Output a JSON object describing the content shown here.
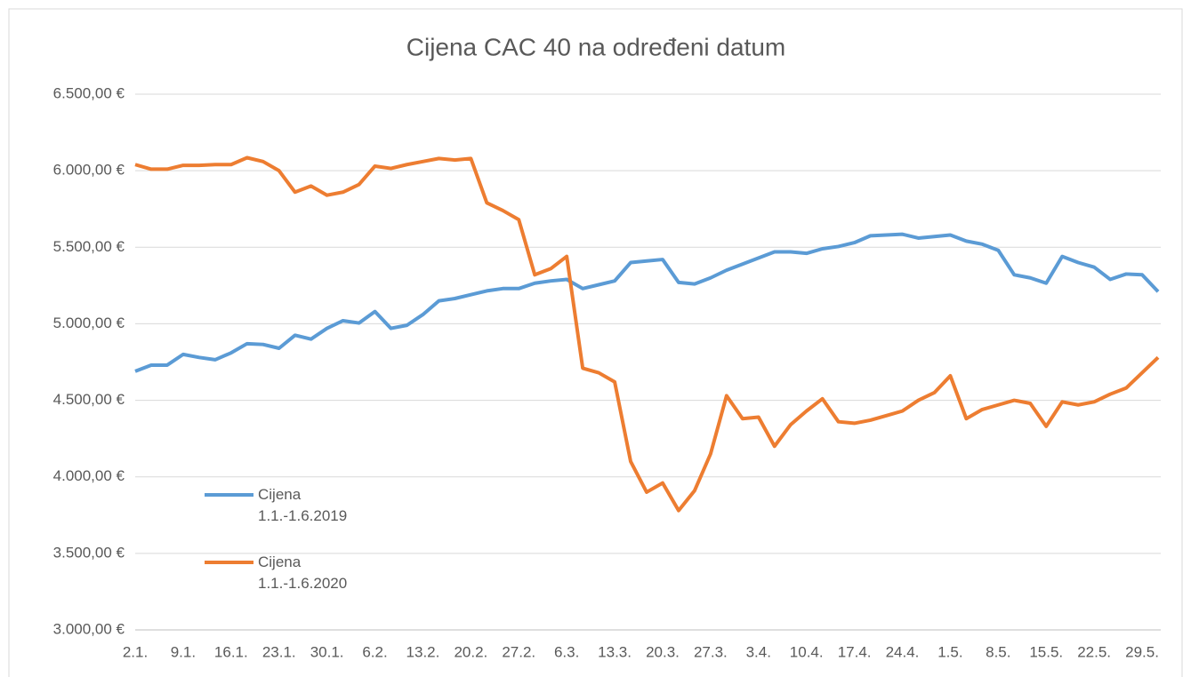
{
  "chart_data": {
    "type": "line",
    "title": "Cijena CAC 40 na određeni datum",
    "categories": [
      "2.1.",
      null,
      null,
      "9.1.",
      null,
      null,
      "16.1.",
      null,
      null,
      "23.1.",
      null,
      null,
      "30.1.",
      null,
      null,
      "6.2.",
      null,
      null,
      "13.2.",
      null,
      null,
      "20.2.",
      null,
      null,
      "27.2.",
      null,
      null,
      "6.3.",
      null,
      null,
      "13.3.",
      null,
      null,
      "20.3.",
      null,
      null,
      "27.3.",
      null,
      null,
      "3.4.",
      null,
      null,
      "10.4.",
      null,
      null,
      "17.4.",
      null,
      null,
      "24.4.",
      null,
      null,
      "1.5.",
      null,
      null,
      "8.5.",
      null,
      null,
      "15.5.",
      null,
      null,
      "22.5.",
      null,
      null,
      "29.5.",
      null
    ],
    "series": [
      {
        "name": "Cijena 1.1.-1.6.2019",
        "color": "#5b9bd5",
        "values": [
          4690,
          4730,
          4730,
          4800,
          4780,
          4765,
          4810,
          4870,
          4865,
          4840,
          4925,
          4900,
          4970,
          5020,
          5005,
          5080,
          4970,
          4990,
          5060,
          5150,
          5165,
          5190,
          5215,
          5230,
          5230,
          5265,
          5280,
          5290,
          5230,
          5255,
          5280,
          5400,
          5410,
          5420,
          5270,
          5260,
          5300,
          5350,
          5390,
          5430,
          5470,
          5470,
          5460,
          5490,
          5505,
          5530,
          5575,
          5580,
          5585,
          5560,
          5570,
          5580,
          5540,
          5520,
          5480,
          5320,
          5300,
          5265,
          5440,
          5400,
          5370,
          5290,
          5325,
          5320,
          5210
        ]
      },
      {
        "name": "Cijena 1.1.-1.6.2020",
        "color": "#ed7d31",
        "values": [
          6040,
          6010,
          6010,
          6035,
          6035,
          6040,
          6040,
          6085,
          6060,
          6000,
          5860,
          5900,
          5840,
          5860,
          5910,
          6030,
          6015,
          6040,
          6060,
          6080,
          6070,
          6080,
          5790,
          5740,
          5680,
          5320,
          5360,
          5440,
          4710,
          4680,
          4620,
          4100,
          3900,
          3960,
          3780,
          3910,
          4150,
          4530,
          4380,
          4390,
          4200,
          4340,
          4430,
          4510,
          4360,
          4350,
          4370,
          4400,
          4430,
          4500,
          4550,
          4660,
          4380,
          4440,
          4470,
          4500,
          4480,
          4330,
          4490,
          4470,
          4490,
          4540,
          4580,
          4680,
          4780
        ]
      }
    ],
    "ylim": [
      3000,
      6500
    ],
    "yticks": [
      {
        "value": 3000,
        "label": "3.000,00 €"
      },
      {
        "value": 3500,
        "label": "3.500,00 €"
      },
      {
        "value": 4000,
        "label": "4.000,00 €"
      },
      {
        "value": 4500,
        "label": "4.500,00 €"
      },
      {
        "value": 5000,
        "label": "5.000,00 €"
      },
      {
        "value": 5500,
        "label": "5.500,00 €"
      },
      {
        "value": 6000,
        "label": "6.000,00 €"
      },
      {
        "value": 6500,
        "label": "6.500,00 €"
      }
    ],
    "grid": true,
    "legend": "left"
  }
}
